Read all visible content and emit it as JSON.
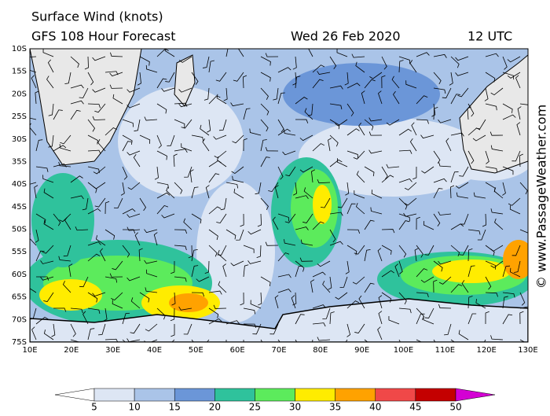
{
  "header": {
    "title": "Surface Wind (knots)",
    "model": "GFS 108 Hour Forecast",
    "date": "Wed 26 Feb 2020",
    "time": "12 UTC"
  },
  "map": {
    "lat_labels": [
      "10S",
      "15S",
      "20S",
      "25S",
      "30S",
      "35S",
      "40S",
      "45S",
      "50S",
      "55S",
      "60S",
      "65S",
      "70S",
      "75S"
    ],
    "lon_labels": [
      "10E",
      "20E",
      "30E",
      "40E",
      "50E",
      "60E",
      "70E",
      "80E",
      "90E",
      "100E",
      "110E",
      "120E",
      "130E"
    ]
  },
  "colorbar": {
    "ticks": [
      5,
      10,
      15,
      20,
      25,
      30,
      35,
      40,
      45,
      50
    ],
    "colors": [
      "#ffffff",
      "#dde6f4",
      "#aac4e8",
      "#6b96d8",
      "#2fc29c",
      "#5ceb5c",
      "#ffec00",
      "#ffa200",
      "#f04848",
      "#c40000",
      "#d400d4"
    ]
  },
  "credit": "© www.PassageWeather.com"
}
